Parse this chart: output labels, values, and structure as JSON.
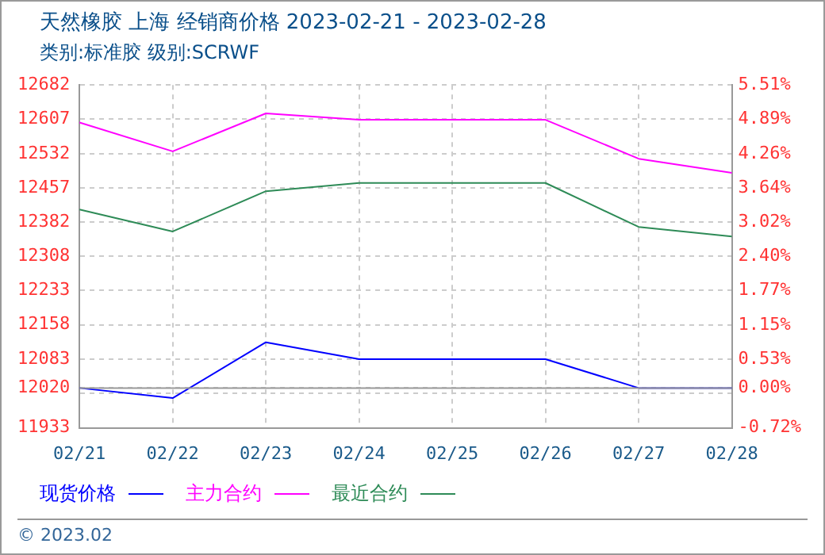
{
  "chart_data": {
    "type": "line",
    "title": "天然橡胶 上海 经销商价格 2023-02-21 - 2023-02-28",
    "subtitle": "类别:标准胶 级别:SCRWF",
    "categories": [
      "02/21",
      "02/22",
      "02/23",
      "02/24",
      "02/25",
      "02/26",
      "02/27",
      "02/28"
    ],
    "series": [
      {
        "name": "现货价格",
        "color": "#0000ff",
        "values": [
          12020,
          11998,
          12120,
          12083,
          12083,
          12083,
          12020,
          12020
        ]
      },
      {
        "name": "主力合约",
        "color": "#ff00ff",
        "values": [
          12600,
          12537,
          12620,
          12606,
          12606,
          12606,
          12521,
          12490
        ]
      },
      {
        "name": "最近合约",
        "color": "#2e8b57",
        "values": [
          12410,
          12362,
          12450,
          12468,
          12468,
          12468,
          12372,
          12351
        ]
      }
    ],
    "ylim": [
      11933,
      12682
    ],
    "yticks": [
      11933,
      {
        "value": 12008,
        "label": null
      },
      12020,
      12083,
      12158,
      12233,
      12308,
      12382,
      12457,
      12532,
      12607,
      12682
    ],
    "y2lim": [
      -0.72,
      5.51
    ],
    "y2ticks": [
      {
        "value": -0.72,
        "label": "-0.72%"
      },
      {
        "value": 0,
        "label": "0.00%"
      },
      {
        "value": 0.53,
        "label": "0.53%"
      },
      {
        "value": 1.15,
        "label": "1.15%"
      },
      {
        "value": 1.77,
        "label": "1.77%"
      },
      {
        "value": 2.4,
        "label": "2.40%"
      },
      {
        "value": 3.02,
        "label": "3.02%"
      },
      {
        "value": 3.64,
        "label": "3.64%"
      },
      {
        "value": 4.26,
        "label": "4.26%"
      },
      {
        "value": 4.89,
        "label": "4.89%"
      },
      {
        "value": 5.51,
        "label": "5.51%"
      }
    ],
    "ref_lines": [
      {
        "axis": "y",
        "value": 12020,
        "color": "#999999"
      }
    ],
    "annotations": [
      "© 2023.02"
    ],
    "grid": true,
    "legend": "bottom",
    "marker": "none",
    "line_style": "solid"
  }
}
